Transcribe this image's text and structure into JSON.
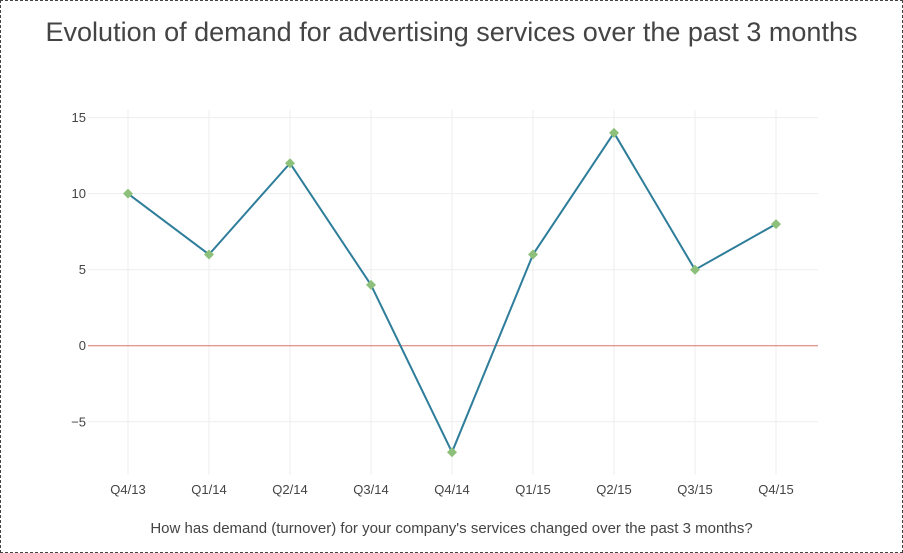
{
  "chart_data": {
    "type": "line",
    "title": "Evolution of demand for advertising services over the past 3 months",
    "xlabel": "How has demand (turnover) for your company's services changed over the past 3 months?",
    "ylabel": "",
    "categories": [
      "Q4/13",
      "Q1/14",
      "Q2/14",
      "Q3/14",
      "Q4/14",
      "Q1/15",
      "Q2/15",
      "Q3/15",
      "Q4/15"
    ],
    "series": [
      {
        "values": [
          10,
          6,
          12,
          4,
          -7,
          6,
          14,
          5,
          8
        ]
      }
    ],
    "ylim": [
      -8.5,
      15.5
    ],
    "yticks": [
      -5,
      0,
      5,
      10,
      15
    ],
    "ytick_labels": [
      "−5",
      "0",
      "5",
      "10",
      "15"
    ],
    "grid": true,
    "reference_line": {
      "y": 0
    },
    "colors": {
      "line": "#2e7d9a",
      "marker": "#8dc07a",
      "zero_line": "#d9736e",
      "grid": "#eeeeee",
      "text": "#444444"
    },
    "marker": "diamond-icon"
  }
}
